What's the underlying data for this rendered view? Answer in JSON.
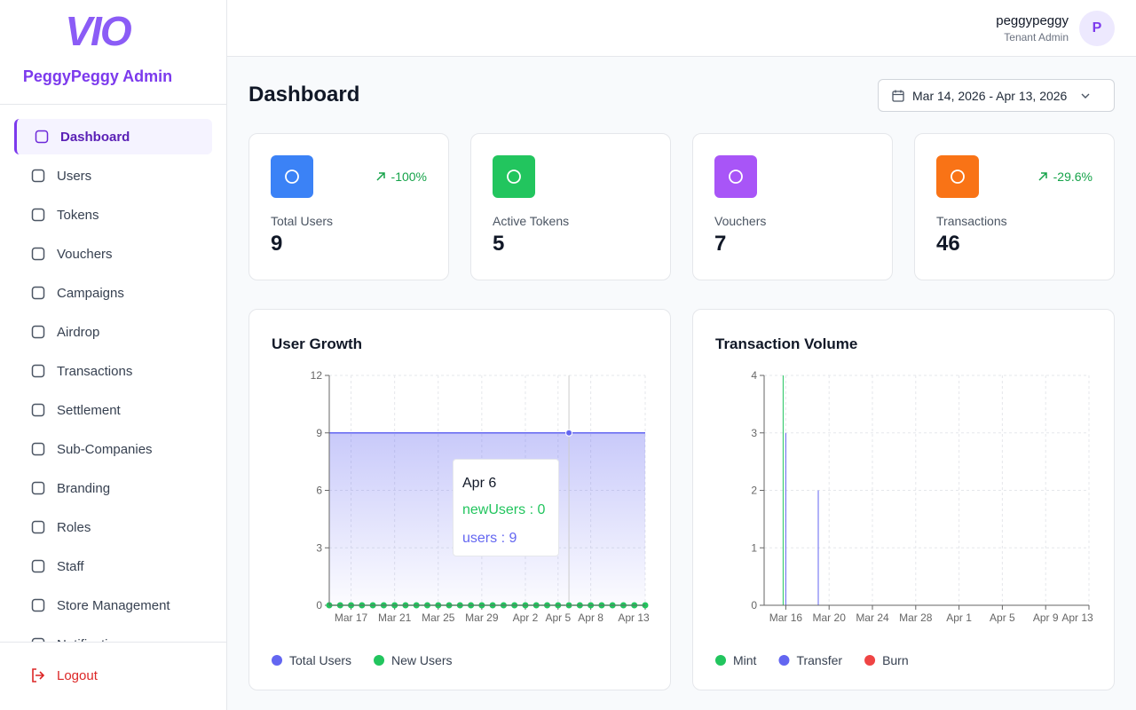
{
  "brand": {
    "logo": "VIO",
    "name": "PeggyPeggy Admin"
  },
  "nav": {
    "items": [
      "Dashboard",
      "Users",
      "Tokens",
      "Vouchers",
      "Campaigns",
      "Airdrop",
      "Transactions",
      "Settlement",
      "Sub-Companies",
      "Branding",
      "Roles",
      "Staff",
      "Store Management",
      "Notifications"
    ],
    "active": 0,
    "logout": "Logout"
  },
  "header": {
    "user": "peggypeggy",
    "role": "Tenant Admin",
    "avatar": "P"
  },
  "page": {
    "title": "Dashboard",
    "date_range": "Mar 14, 2026 - Apr 13, 2026"
  },
  "stats": [
    {
      "label": "Total Users",
      "value": 9,
      "change": "-100%",
      "color": "#3b82f6"
    },
    {
      "label": "Active Tokens",
      "value": 5,
      "color": "#22c55e"
    },
    {
      "label": "Vouchers",
      "value": 7,
      "color": "#a855f7"
    },
    {
      "label": "Transactions",
      "value": 46,
      "change": "-29.6%",
      "color": "#f97316"
    }
  ],
  "charts": [
    {
      "type": "line",
      "title": "User Growth",
      "categories": [
        null,
        null,
        "Mar 17",
        null,
        null,
        null,
        "Mar 21",
        null,
        null,
        null,
        "Mar 25",
        null,
        null,
        null,
        "Mar 29",
        null,
        null,
        null,
        "Apr 2",
        null,
        null,
        "Apr 5",
        null,
        null,
        "Apr 8",
        null,
        null,
        null,
        null,
        "Apr 13"
      ],
      "series": [
        {
          "name": "Total Users",
          "color": "#6366f1",
          "area": true,
          "values": [
            9,
            9,
            9,
            9,
            9,
            9,
            9,
            9,
            9,
            9,
            9,
            9,
            9,
            9,
            9,
            9,
            9,
            9,
            9,
            9,
            9,
            9,
            9,
            9,
            9,
            9,
            9,
            9,
            9,
            9
          ]
        },
        {
          "name": "New Users",
          "color": "#22c55e",
          "dots": true,
          "values": [
            0,
            0,
            0,
            0,
            0,
            0,
            0,
            0,
            0,
            0,
            0,
            0,
            0,
            0,
            0,
            0,
            0,
            0,
            0,
            0,
            0,
            0,
            0,
            0,
            0,
            0,
            0,
            0,
            0,
            0
          ]
        }
      ],
      "ylim": [
        0,
        12
      ],
      "yticks": [
        0,
        3,
        6,
        9,
        12
      ],
      "grid": true,
      "hover_index": 22,
      "tooltip": {
        "title": "Apr 6",
        "separator": " : ",
        "items": [
          {
            "name": "newUsers",
            "value": 0,
            "color": "#22c55e"
          },
          {
            "name": "users",
            "value": 9,
            "color": "#6366f1"
          }
        ]
      }
    },
    {
      "type": "bar",
      "title": "Transaction Volume",
      "categories": [
        null,
        null,
        "Mar 16",
        null,
        null,
        null,
        "Mar 20",
        null,
        null,
        null,
        "Mar 24",
        null,
        null,
        null,
        "Mar 28",
        null,
        null,
        null,
        "Apr 1",
        null,
        null,
        null,
        "Apr 5",
        null,
        null,
        null,
        "Apr 9",
        null,
        null,
        null,
        "Apr 13"
      ],
      "series": [
        {
          "name": "Mint",
          "color": "#22c55e",
          "values": [
            0,
            0,
            4,
            0,
            0,
            0,
            0,
            0,
            0,
            0,
            0,
            0,
            0,
            0,
            0,
            0,
            0,
            0,
            0,
            0,
            0,
            0,
            0,
            0,
            0,
            0,
            0,
            0,
            0,
            0,
            0
          ]
        },
        {
          "name": "Transfer",
          "color": "#6366f1",
          "values": [
            0,
            0,
            3,
            0,
            0,
            2,
            0,
            0,
            0,
            0,
            0,
            0,
            0,
            0,
            0,
            0,
            0,
            0,
            0,
            0,
            0,
            0,
            0,
            0,
            0,
            0,
            0,
            0,
            0,
            0,
            0
          ]
        },
        {
          "name": "Burn",
          "color": "#ef4444",
          "values": [
            0,
            0,
            0,
            0,
            0,
            0,
            0,
            0,
            0,
            0,
            0,
            0,
            0,
            0,
            0,
            0,
            0,
            0,
            0,
            0,
            0,
            0,
            0,
            0,
            0,
            0,
            0,
            0,
            0,
            0,
            0
          ]
        }
      ],
      "ylim": [
        0,
        4
      ],
      "yticks": [
        0,
        1,
        2,
        3,
        4
      ],
      "grid": true
    }
  ]
}
